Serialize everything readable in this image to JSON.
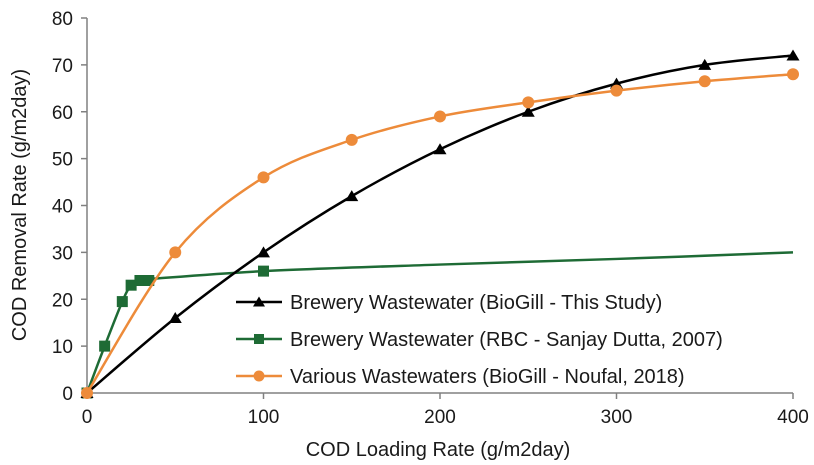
{
  "chart_data": {
    "type": "line",
    "xlabel": "COD Loading Rate (g/m2day)",
    "ylabel": "COD Removal Rate (g/m2day)",
    "xlim": [
      0,
      400
    ],
    "ylim": [
      0,
      80
    ],
    "xticks": [
      0,
      100,
      200,
      300,
      400
    ],
    "yticks": [
      0,
      10,
      20,
      30,
      40,
      50,
      60,
      70,
      80
    ],
    "grid": false,
    "legend_position": "lower-right",
    "series": [
      {
        "name": "Brewery Wastewater (BioGill - This Study)",
        "color": "#000000",
        "marker": "triangle",
        "x": [
          0,
          50,
          100,
          150,
          200,
          250,
          300,
          350,
          400
        ],
        "y": [
          0,
          16,
          30,
          42,
          52,
          60,
          66,
          70,
          72
        ]
      },
      {
        "name": "Brewery Wastewater (RBC - Sanjay Dutta, 2007)",
        "color": "#1e6b35",
        "marker": "square",
        "x": [
          0,
          10,
          20,
          25,
          30,
          35,
          100
        ],
        "y": [
          0,
          10,
          19.5,
          23,
          24,
          24,
          26
        ],
        "trend_x": [
          35,
          100,
          200,
          300,
          400
        ],
        "trend_y": [
          24.3,
          26,
          27.4,
          28.6,
          30
        ]
      },
      {
        "name": "Various Wastewaters (BioGill - Noufal, 2018)",
        "color": "#ed8b3a",
        "marker": "circle",
        "x": [
          0,
          50,
          100,
          150,
          200,
          250,
          300,
          350,
          400
        ],
        "y": [
          0,
          30,
          46,
          54,
          59,
          62,
          64.5,
          66.5,
          68
        ]
      }
    ]
  }
}
